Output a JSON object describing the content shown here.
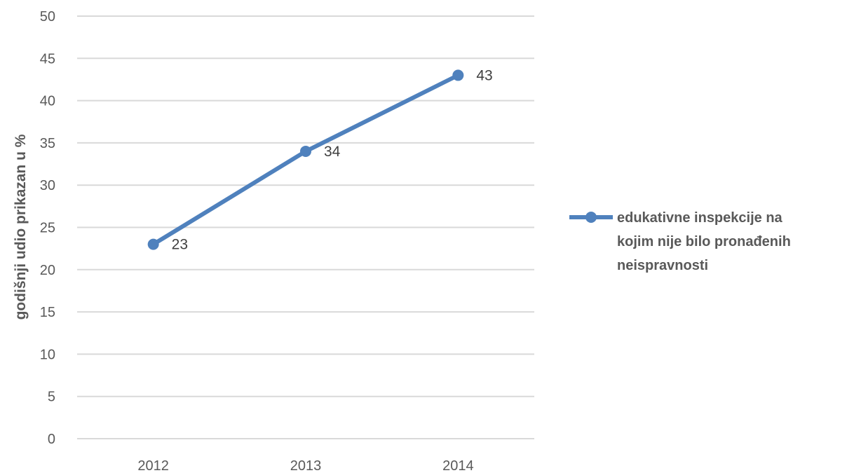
{
  "chart_data": {
    "type": "line",
    "categories": [
      "2012",
      "2013",
      "2014"
    ],
    "series": [
      {
        "name": "edukativne inspekcije na kojim nije bilo pronađenih neispravnosti",
        "values": [
          23,
          34,
          43
        ],
        "color": "#4f81bd"
      }
    ],
    "ylabel": "godišnji udio prikazan u %",
    "xlabel": "",
    "title": "",
    "ylim": [
      0,
      50
    ],
    "yticks": [
      "0",
      "5",
      "10",
      "15",
      "20",
      "25",
      "30",
      "35",
      "40",
      "45",
      "50"
    ],
    "data_labels": [
      "23",
      "34",
      "43"
    ],
    "legend": {
      "position": "right",
      "lines": [
        "edukativne inspekcije na",
        "kojim nije bilo pronađenih",
        "neispravnosti"
      ]
    },
    "grid": true,
    "gridline_color": "#d9d9d9"
  }
}
